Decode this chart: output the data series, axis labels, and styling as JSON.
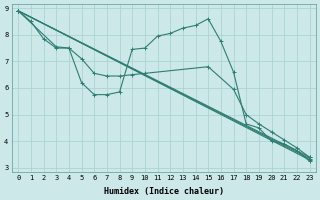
{
  "xlabel": "Humidex (Indice chaleur)",
  "background_color": "#cce8e8",
  "grid_color": "#aad4d4",
  "line_color": "#2e7d72",
  "xlim": [
    -0.5,
    23.5
  ],
  "ylim": [
    2.85,
    9.15
  ],
  "xticks": [
    0,
    1,
    2,
    3,
    4,
    5,
    6,
    7,
    8,
    9,
    10,
    11,
    12,
    13,
    14,
    15,
    16,
    17,
    18,
    19,
    20,
    21,
    22,
    23
  ],
  "yticks": [
    3,
    4,
    5,
    6,
    7,
    8,
    9
  ],
  "line1_x": [
    0,
    1,
    2,
    3,
    4,
    5,
    6,
    7,
    8,
    9,
    10,
    11,
    12,
    13,
    14,
    15,
    16,
    17,
    18,
    19,
    20,
    21,
    22,
    23
  ],
  "line1_y": [
    8.9,
    8.5,
    7.85,
    7.5,
    7.5,
    6.2,
    5.75,
    5.75,
    5.85,
    7.45,
    7.5,
    7.95,
    8.05,
    8.25,
    8.35,
    8.6,
    7.75,
    6.6,
    4.65,
    4.5,
    4.0,
    3.9,
    3.65,
    3.25
  ],
  "line2_x": [
    0,
    23
  ],
  "line2_y": [
    8.9,
    3.3
  ],
  "line3_x": [
    0,
    23
  ],
  "line3_y": [
    8.9,
    3.35
  ],
  "line4_x": [
    0,
    23
  ],
  "line4_y": [
    8.9,
    3.4
  ],
  "curvy2_x": [
    0,
    3,
    4,
    5,
    6,
    7,
    8,
    9,
    10,
    15,
    17,
    18,
    19,
    20,
    21,
    22,
    23
  ],
  "curvy2_y": [
    8.9,
    7.55,
    7.5,
    7.1,
    6.55,
    6.45,
    6.45,
    6.5,
    6.55,
    6.8,
    5.95,
    5.0,
    4.65,
    4.35,
    4.05,
    3.75,
    3.4
  ]
}
